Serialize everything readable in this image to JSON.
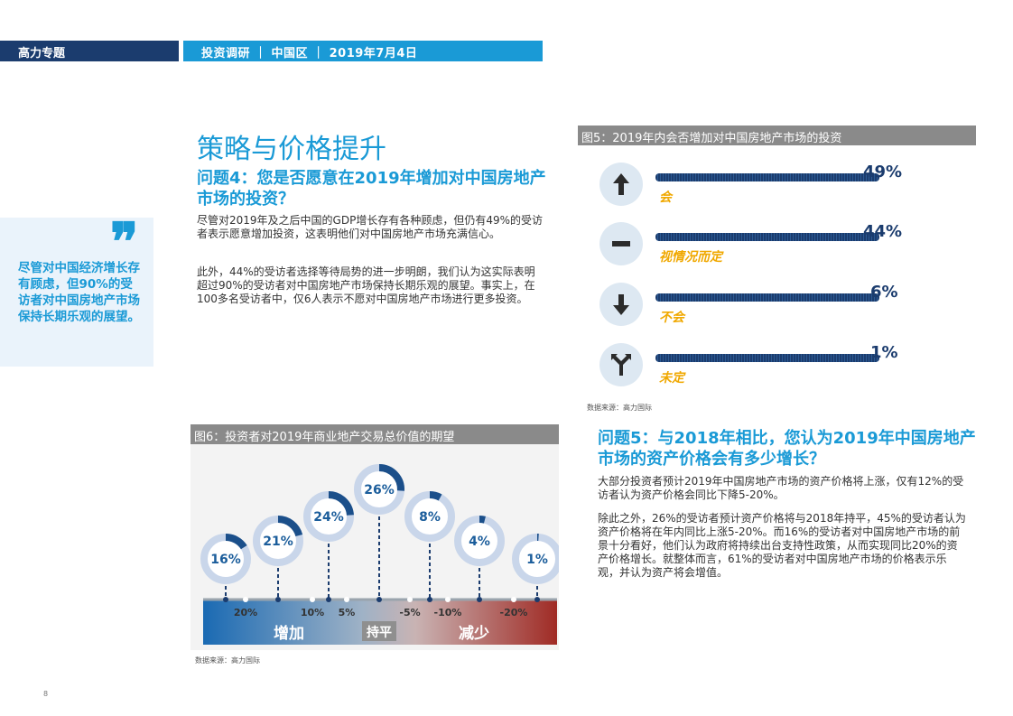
{
  "header": {
    "left": "高力专题",
    "right": "投资调研 ｜ 中国区 ｜ 2019年7月4日"
  },
  "section_title": "策略与价格提升",
  "question4": "问题4：您是否愿意在2019年增加对中国房地产市场的投资？",
  "paragraph1": "尽管对2019年及之后中国的GDP增长存有各种顾虑，但仍有49%的受访者表示愿意增加投资，这表明他们对中国房地产市场充满信心。",
  "paragraph2": "此外，44%的受访者选择等待局势的进一步明朗，我们认为这实际表明超过90%的受访者对中国房地产市场保持长期乐观的展望。事实上，在100多名受访者中，仅6人表示不愿对中国房地产市场进行更多投资。",
  "quote": {
    "mark": "❞",
    "text": "尽管对中国经济增长存有顾虑，但90%的受访者对中国房地产市场保持长期乐观的展望。"
  },
  "figure5": {
    "title": "图5：2019年内会否增加对中国房地产市场的投资",
    "source": "数据来源：高力国际",
    "rows": [
      {
        "label": "会",
        "pct": "49%",
        "icon": "arrow-up-icon"
      },
      {
        "label": "视情况而定",
        "pct": "44%",
        "icon": "minus-icon"
      },
      {
        "label": "不会",
        "pct": "6%",
        "icon": "arrow-down-icon"
      },
      {
        "label": "未定",
        "pct": "1%",
        "icon": "split-arrow-icon"
      }
    ]
  },
  "question5": "问题5：与2018年相比，您认为2019年中国房地产市场的资产价格会有多少增长？",
  "paragraph3": "大部分投资者预计2019年中国房地产市场的资产价格将上涨，仅有12%的受访者认为资产价格会同比下降5-20%。",
  "paragraph4": "除此之外，26%的受访者预计资产价格将与2018年持平，45%的受访者认为资产价格将在年内同比上涨5-20%。而16%的受访者对中国房地产市场的前景十分看好，他们认为政府将持续出台支持性政策，从而实现同比20%的资产价格增长。就整体而言，61%的受访者对中国房地产市场的价格表示乐观，并认为资产将会增值。",
  "figure6": {
    "title": "图6：投资者对2019年商业地产交易总价值的期望",
    "source": "数据来源：高力国际",
    "increase_label": "增加",
    "flat_label": "持平",
    "decrease_label": "减少"
  },
  "chart_data": {
    "type": "pie",
    "categories": [
      "20%",
      "10%",
      "5%",
      "持平",
      "-5%",
      "-10%",
      "-20%"
    ],
    "values": [
      16,
      21,
      24,
      26,
      8,
      4,
      1
    ],
    "labels": [
      "16%",
      "21%",
      "24%",
      "26%",
      "8%",
      "4%",
      "1%"
    ],
    "axis_ticks": [
      "20%",
      "10%",
      "5%",
      "-5%",
      "-10%",
      "-20%"
    ],
    "colors": {
      "ring_bg": "#c9d6ea",
      "ring_fg": "#1b4f8a",
      "bar_left": "#1a6ab3",
      "bar_right": "#a02b25"
    }
  },
  "page_number": "8",
  "colors": {
    "navy": "#1b3c6e",
    "blue": "#1a9ad6",
    "gold": "#f0a800"
  }
}
